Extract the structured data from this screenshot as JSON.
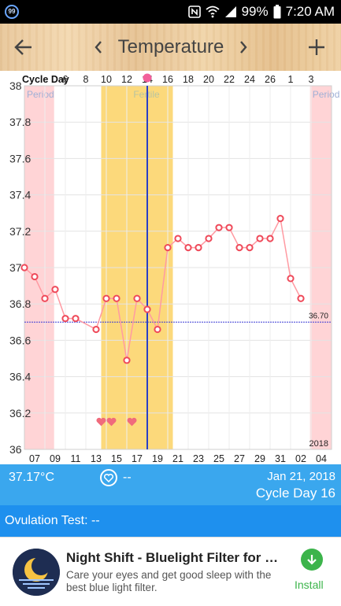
{
  "status_bar": {
    "badge": "99",
    "battery": "99%",
    "time": "7:20 AM",
    "icons": [
      "nfc-icon",
      "wifi-icon",
      "signal-icon",
      "battery-icon"
    ]
  },
  "header": {
    "title": "Temperature",
    "icons": [
      "back-arrow-icon",
      "chevron-left-icon",
      "chevron-right-icon",
      "plus-icon"
    ]
  },
  "chart_data": {
    "type": "line",
    "top_label": "Cycle Day",
    "cycle_day_ticks": [
      "6",
      "8",
      "10",
      "12",
      "14",
      "16",
      "18",
      "20",
      "22",
      "24",
      "26",
      "1",
      "3"
    ],
    "date_ticks": [
      "07",
      "09",
      "11",
      "13",
      "15",
      "17",
      "19",
      "21",
      "23",
      "25",
      "27",
      "29",
      "31",
      "02",
      "04"
    ],
    "x_start": 6,
    "x_end": 36,
    "ylim": [
      36,
      38
    ],
    "y_ticks": [
      "36",
      "36.2",
      "36.4",
      "36.6",
      "36.8",
      "37",
      "37.2",
      "37.4",
      "37.6",
      "37.8",
      "38"
    ],
    "series": [
      {
        "x": [
          6,
          7,
          8,
          9,
          10,
          11,
          13,
          14,
          15,
          16,
          17,
          18,
          19,
          20,
          21,
          22,
          23,
          24,
          25,
          26,
          27,
          28,
          29,
          30,
          31,
          32,
          33
        ],
        "values": [
          37.0,
          36.95,
          36.83,
          36.88,
          36.72,
          36.72,
          36.66,
          36.83,
          36.83,
          36.49,
          36.83,
          36.77,
          36.66,
          37.11,
          37.16,
          37.11,
          37.11,
          37.16,
          37.22,
          37.22,
          37.11,
          37.11,
          37.16,
          37.16,
          37.27,
          36.94,
          36.83
        ],
        "color": "#ff9aa2"
      }
    ],
    "coverline": {
      "value": 36.7,
      "label": "36.70",
      "color": "#3a3ad6"
    },
    "period_bands": [
      {
        "from": 6,
        "to": 8.9,
        "label": "Period"
      },
      {
        "from": 33.9,
        "to": 37,
        "label": "Period"
      }
    ],
    "fertile_band": {
      "from": 13.5,
      "to": 20.5,
      "label": "Fertile"
    },
    "ovulation_day": 18,
    "hearts_x": [
      13.5,
      14.5,
      16.5
    ],
    "hearts_value": 36.15,
    "year_label": "2018",
    "colors": {
      "period": "#ffd4d6",
      "fertile": "#fcd97b",
      "ovulation": "#2a3fc6",
      "point_stroke": "#ef4a5a",
      "heart": "#f06b7c",
      "marker": "#f25f9a"
    }
  },
  "info": {
    "temperature": "37.17°C",
    "intercourse": "--",
    "date": "Jan 21, 2018",
    "cycle_day": "Cycle Day 16"
  },
  "ovulation_test": {
    "label": "Ovulation Test: --"
  },
  "ad": {
    "title": "Night Shift - Bluelight Filter for Goo...",
    "description": "Care your eyes and get good sleep with the best blue light filter.",
    "install_label": "Install"
  }
}
